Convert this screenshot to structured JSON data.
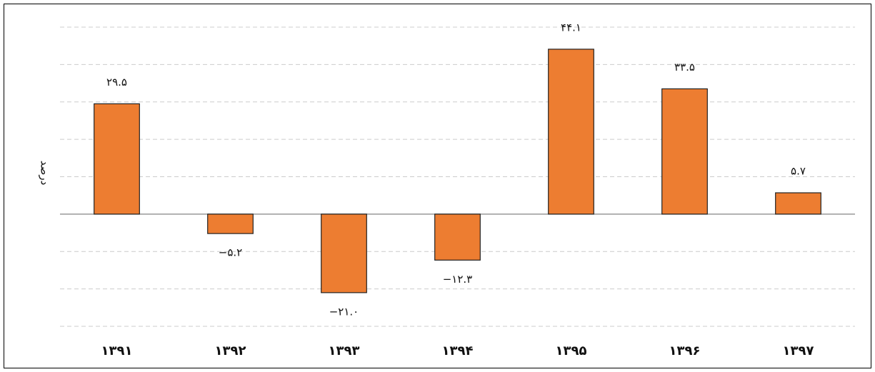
{
  "chart_data": {
    "type": "bar",
    "y_label": "درصد",
    "categories": [
      "۱۳۹۱",
      "۱۳۹۲",
      "۱۳۹۳",
      "۱۳۹۴",
      "۱۳۹۵",
      "۱۳۹۶",
      "۱۳۹۷"
    ],
    "values": [
      29.5,
      -5.2,
      -21.0,
      -12.3,
      44.1,
      33.5,
      5.7
    ],
    "value_labels": [
      "۲۹.۵",
      "−۵.۲",
      "−۲۱.۰",
      "−۱۲.۳",
      "۴۴.۱",
      "۳۳.۵",
      "۵.۷"
    ],
    "color": "#ed7d31",
    "ylim": [
      -30,
      50
    ],
    "yticks": [
      -30,
      -20,
      -10,
      0,
      10,
      20,
      30,
      40,
      50
    ],
    "grid": true
  }
}
